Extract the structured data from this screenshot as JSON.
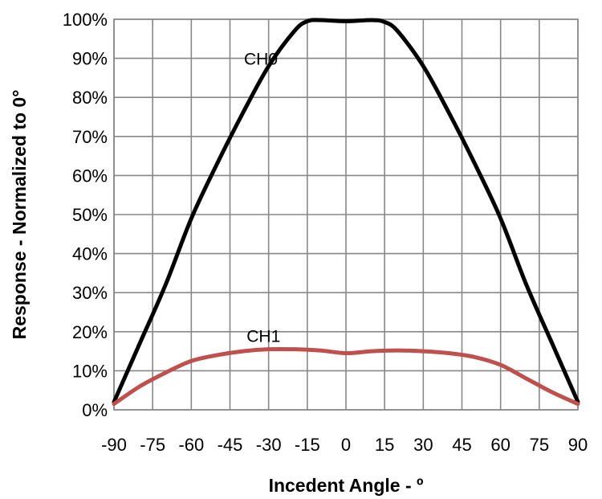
{
  "chart_data": {
    "type": "line",
    "xlabel": "Incedent Angle - º",
    "ylabel": "Response - Normalized to 0°",
    "xlim": [
      -90,
      90
    ],
    "ylim": [
      0,
      100
    ],
    "grid": true,
    "x_ticks": [
      -90,
      -75,
      -60,
      -45,
      -30,
      -15,
      0,
      15,
      30,
      45,
      60,
      75,
      90
    ],
    "x_tick_labels": [
      "-90",
      "-75",
      "-60",
      "-45",
      "-30",
      "-15",
      "0",
      "15",
      "30",
      "45",
      "60",
      "75",
      "90"
    ],
    "y_ticks": [
      0,
      10,
      20,
      30,
      40,
      50,
      60,
      70,
      80,
      90,
      100
    ],
    "y_tick_labels": [
      "0%",
      "10%",
      "20%",
      "30%",
      "40%",
      "50%",
      "60%",
      "70%",
      "80%",
      "90%",
      "100%"
    ],
    "series": [
      {
        "name": "CH0",
        "color": "#000000",
        "x": [
          -90,
          -80,
          -70,
          -60,
          -50,
          -40,
          -30,
          -20,
          -15,
          -10,
          0,
          10,
          15,
          20,
          30,
          40,
          50,
          60,
          70,
          80,
          90
        ],
        "y": [
          2,
          17,
          32,
          49,
          63,
          76,
          88,
          97,
          99.5,
          99.8,
          99.5,
          99.8,
          99.3,
          97,
          88,
          76,
          63,
          49,
          32,
          17,
          2
        ]
      },
      {
        "name": "CH1",
        "color": "#c0504d",
        "x": [
          -90,
          -80,
          -70,
          -60,
          -50,
          -40,
          -30,
          -20,
          -10,
          0,
          10,
          20,
          30,
          40,
          50,
          60,
          70,
          80,
          90
        ],
        "y": [
          1.5,
          6,
          9.5,
          12.5,
          14,
          15,
          15.5,
          15.5,
          15.2,
          14.5,
          15,
          15.2,
          15,
          14.5,
          13.5,
          11.5,
          8,
          4.5,
          1.5
        ]
      }
    ]
  }
}
